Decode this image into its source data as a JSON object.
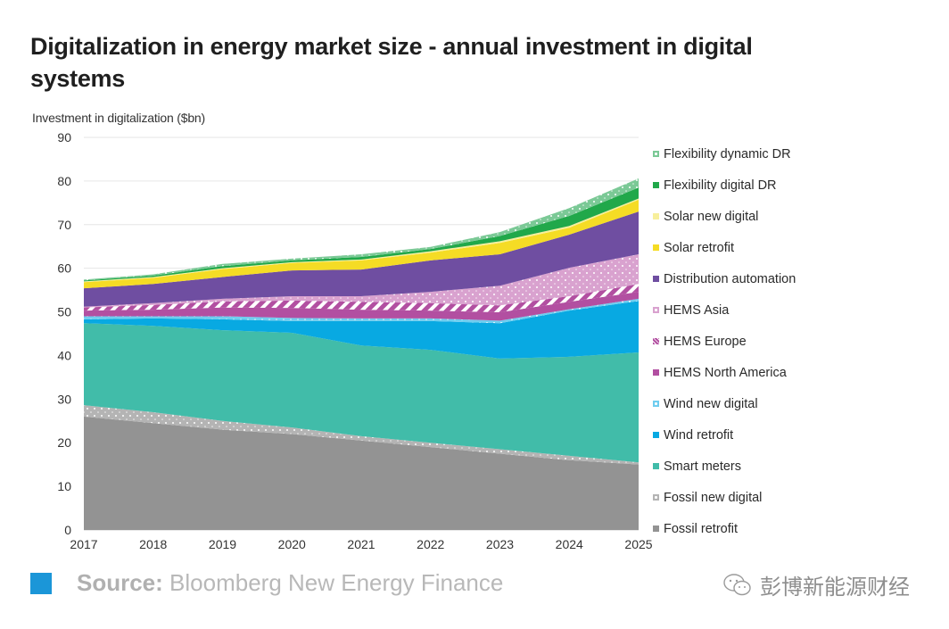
{
  "header": {
    "title": "Digitalization in energy market size - annual investment in digital systems"
  },
  "footer": {
    "source_label": "Source:",
    "source_text": "Bloomberg New Energy Finance",
    "accent_color": "#1b96d8"
  },
  "watermark": {
    "icon": "wechat-icon",
    "text": "彭博新能源财经"
  },
  "chart_data": {
    "type": "area",
    "stacked": true,
    "title": "Digitalization in energy market size - annual investment in digital systems",
    "xlabel": "",
    "ylabel": "Investment in digitalization ($bn)",
    "ylim": [
      0,
      90
    ],
    "yticks": [
      0,
      10,
      20,
      30,
      40,
      50,
      60,
      70,
      80,
      90
    ],
    "grid": true,
    "legend_position": "right",
    "categories": [
      "2017",
      "2018",
      "2019",
      "2020",
      "2021",
      "2022",
      "2023",
      "2024",
      "2025"
    ],
    "series": [
      {
        "name": "Fossil retrofit",
        "color": "#939393",
        "pattern": "solid",
        "values": [
          26,
          24.5,
          23,
          22,
          20.5,
          19,
          17.5,
          16,
          15
        ]
      },
      {
        "name": "Fossil new digital",
        "color": "#b4b4b4",
        "pattern": "dots",
        "values": [
          2.6,
          2.5,
          2,
          1.5,
          1,
          1,
          1,
          1,
          0.5
        ]
      },
      {
        "name": "Smart meters",
        "color": "#41bca9",
        "pattern": "solid",
        "values": [
          18.8,
          19.8,
          20.8,
          21.7,
          20.8,
          21.3,
          20.8,
          22.7,
          25.2
        ]
      },
      {
        "name": "Wind retrofit",
        "color": "#08a9e2",
        "pattern": "solid",
        "values": [
          0.9,
          1.7,
          2.5,
          2.7,
          5.6,
          6.6,
          8.1,
          10.6,
          11.8
        ]
      },
      {
        "name": "Wind new digital",
        "color": "#6fcdef",
        "pattern": "dots",
        "values": [
          0.7,
          0.5,
          0.7,
          0.7,
          0.6,
          0.6,
          0.6,
          0.3,
          0.5
        ]
      },
      {
        "name": "HEMS North America",
        "color": "#b24fa1",
        "pattern": "solid",
        "values": [
          1.3,
          1.5,
          2,
          2.3,
          2,
          1.8,
          1.9,
          1.7,
          1.6
        ]
      },
      {
        "name": "HEMS Europe",
        "color": "#b24fa1",
        "pattern": "stripes",
        "values": [
          0.7,
          1.1,
          1.4,
          1.7,
          1.8,
          1.7,
          1.6,
          1.3,
          1.8
        ]
      },
      {
        "name": "HEMS Asia",
        "color": "#d9a2cf",
        "pattern": "dots",
        "values": [
          0.2,
          0.4,
          0.6,
          1,
          1.3,
          2.6,
          4.5,
          6.5,
          6.8
        ]
      },
      {
        "name": "Distribution automation",
        "color": "#6f4ea1",
        "pattern": "solid",
        "values": [
          4.2,
          4.4,
          5,
          5.9,
          6.1,
          7.2,
          7.2,
          7.6,
          9.8
        ]
      },
      {
        "name": "Solar retrofit",
        "color": "#f5dc25",
        "pattern": "solid",
        "values": [
          1.4,
          1.4,
          1.8,
          1.7,
          2.1,
          1.8,
          2.6,
          1.6,
          2.7
        ]
      },
      {
        "name": "Solar new digital",
        "color": "#f7ef9c",
        "pattern": "solid",
        "values": [
          0.2,
          0.2,
          0.2,
          0.2,
          0.2,
          0.3,
          0.4,
          0.4,
          0.3
        ]
      },
      {
        "name": "Flexibility digital DR",
        "color": "#21a84a",
        "pattern": "solid",
        "values": [
          0.2,
          0.3,
          0.5,
          0.4,
          0.6,
          0.5,
          1.2,
          2.3,
          2.5
        ]
      },
      {
        "name": "Flexibility dynamic DR",
        "color": "#7bc996",
        "pattern": "dots",
        "values": [
          0.2,
          0.3,
          0.5,
          0.4,
          0.6,
          0.5,
          0.9,
          1.8,
          2.1
        ]
      }
    ]
  }
}
